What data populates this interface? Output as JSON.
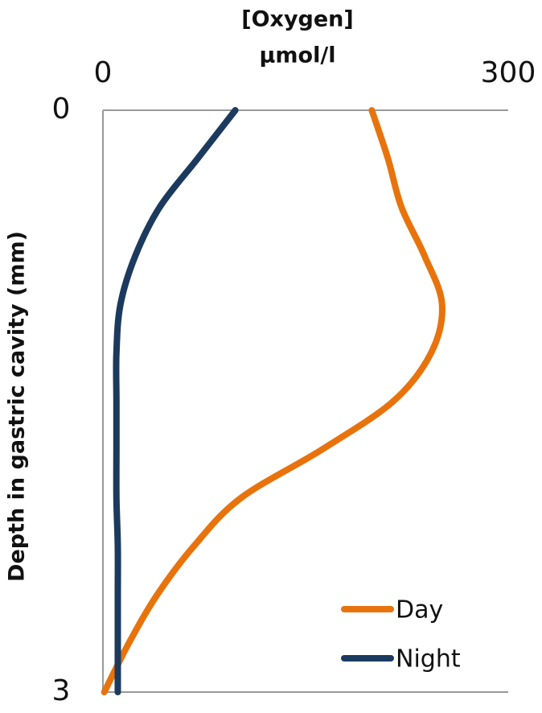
{
  "chart_data": {
    "type": "line",
    "orientation": "vertical",
    "x_label": [
      "[Oxygen]",
      "µmol/l"
    ],
    "y_label": "Depth in gastric cavity (mm)",
    "y": [
      0,
      0.25,
      0.5,
      0.75,
      1,
      1.25,
      1.5,
      1.75,
      2,
      2.25,
      2.5,
      2.75,
      3
    ],
    "series": [
      {
        "name": "Day",
        "color": "#e8730c",
        "values": [
          199,
          211,
          221,
          238,
          251,
          243,
          215,
          162,
          102,
          67,
          40,
          19,
          1
        ]
      },
      {
        "name": "Night",
        "color": "#1b3a5e",
        "values": [
          98,
          70,
          42,
          24,
          13,
          10,
          10,
          10,
          10,
          11,
          11,
          11,
          11
        ]
      }
    ],
    "xlim": [
      0,
      300
    ],
    "xticks": [
      0,
      300
    ],
    "ylim": [
      0,
      3
    ],
    "yticks": [
      0,
      3
    ],
    "y_inverted": true,
    "legend": "lower-right"
  }
}
